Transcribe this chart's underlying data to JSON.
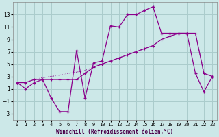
{
  "xlabel": "Windchill (Refroidissement éolien,°C)",
  "x_labels": [
    "0",
    "1",
    "2",
    "3",
    "4",
    "5",
    "6",
    "7",
    "8",
    "9",
    "10",
    "11",
    "12",
    "13",
    "14",
    "15",
    "16",
    "17",
    "18",
    "19",
    "20",
    "21",
    "22",
    "23"
  ],
  "ylim": [
    -4,
    15
  ],
  "yticks": [
    -3,
    -1,
    1,
    3,
    5,
    7,
    9,
    11,
    13
  ],
  "bg_color": "#cce8e8",
  "grid_color": "#aacccc",
  "line_color": "#8b008b",
  "line1_y": [
    2.0,
    1.0,
    2.0,
    2.5,
    -0.5,
    -2.7,
    -2.7,
    7.2,
    -0.5,
    5.2,
    5.5,
    11.2,
    11.0,
    13.0,
    13.0,
    13.7,
    14.3,
    10.0,
    10.0,
    10.0,
    10.0,
    3.5,
    0.5,
    3.0
  ],
  "line2_y": [
    2.0,
    2.0,
    2.5,
    2.5,
    2.5,
    2.5,
    2.5,
    2.5,
    3.5,
    4.5,
    5.0,
    5.5,
    6.0,
    6.5,
    7.0,
    7.5,
    8.0,
    9.0,
    9.5,
    10.0,
    10.0,
    10.0,
    3.5,
    3.0
  ],
  "line3_y": [
    2.0,
    2.0,
    2.5,
    2.8,
    3.0,
    3.2,
    3.5,
    3.7,
    4.0,
    4.5,
    5.0,
    5.5,
    6.0,
    6.5,
    7.0,
    7.5,
    8.0,
    9.0,
    9.5,
    10.0,
    10.0,
    10.0,
    3.5,
    3.0
  ]
}
